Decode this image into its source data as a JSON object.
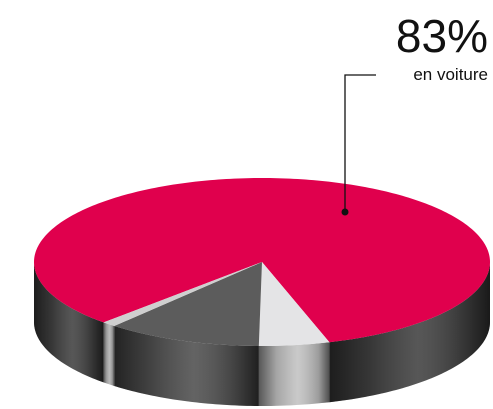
{
  "chart_data": {
    "type": "pie",
    "categories": [
      "en voiture",
      null,
      null,
      null
    ],
    "values": [
      83,
      5,
      11,
      1
    ],
    "value_labels": [
      "83%",
      null,
      null,
      null
    ],
    "colors": [
      "#e0004d",
      "#e4e4e6",
      "#5c5c5c",
      "#cfcfcf"
    ]
  }
}
